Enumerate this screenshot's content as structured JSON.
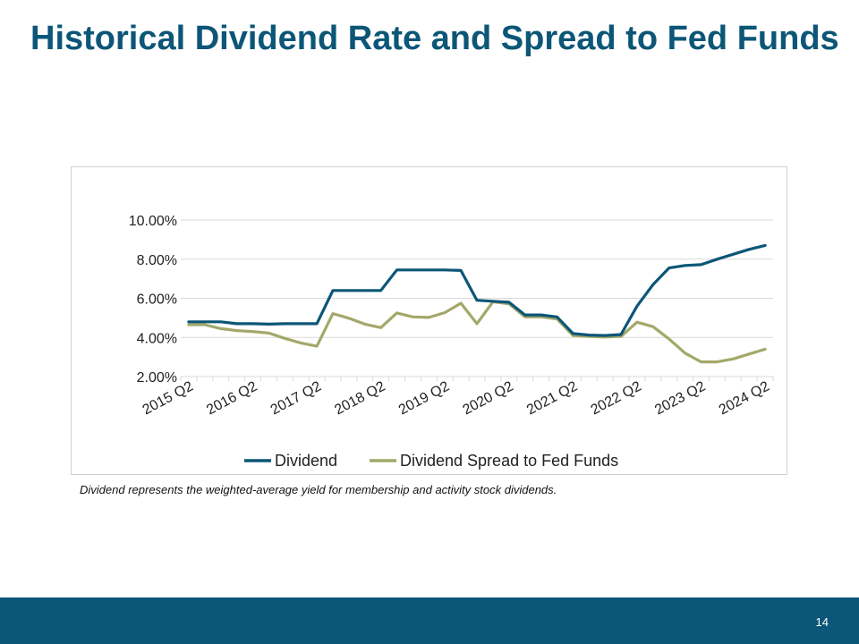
{
  "slide": {
    "title": "Historical Dividend Rate and Spread to Fed Funds",
    "footnote": "Dividend represents the weighted-average yield for membership and activity stock dividends.",
    "page_number": "14"
  },
  "colors": {
    "title": "#0c5677",
    "footer": "#0c5677",
    "dividend": "#0c5677",
    "spread": "#a3a86a",
    "grid": "#d9d9d9"
  },
  "chart_data": {
    "type": "line",
    "title": "",
    "xlabel": "",
    "ylabel": "",
    "ylim": [
      2,
      10
    ],
    "y_ticks": [
      "2.00%",
      "4.00%",
      "6.00%",
      "8.00%",
      "10.00%"
    ],
    "y_tick_values": [
      2,
      4,
      6,
      8,
      10
    ],
    "grid": true,
    "legend_position": "bottom",
    "x_labels": [
      "2015 Q2",
      "2016 Q2",
      "2017 Q2",
      "2018 Q2",
      "2019 Q2",
      "2020 Q2",
      "2021 Q2",
      "2022 Q2",
      "2023 Q2",
      "2024 Q2"
    ],
    "x": [
      "2015 Q2",
      "2015 Q3",
      "2015 Q4",
      "2016 Q1",
      "2016 Q2",
      "2016 Q3",
      "2016 Q4",
      "2017 Q1",
      "2017 Q2",
      "2017 Q3",
      "2017 Q4",
      "2018 Q1",
      "2018 Q2",
      "2018 Q3",
      "2018 Q4",
      "2019 Q1",
      "2019 Q2",
      "2019 Q3",
      "2019 Q4",
      "2020 Q1",
      "2020 Q2",
      "2020 Q3",
      "2020 Q4",
      "2021 Q1",
      "2021 Q2",
      "2021 Q3",
      "2021 Q4",
      "2022 Q1",
      "2022 Q2",
      "2022 Q3",
      "2022 Q4",
      "2023 Q1",
      "2023 Q2",
      "2023 Q3",
      "2023 Q4",
      "2024 Q1",
      "2024 Q2"
    ],
    "series": [
      {
        "name": "Dividend",
        "values": [
          4.8,
          4.8,
          4.8,
          4.7,
          4.7,
          4.68,
          4.7,
          4.7,
          4.7,
          6.4,
          6.4,
          6.4,
          6.4,
          7.45,
          7.45,
          7.45,
          7.45,
          7.42,
          5.9,
          5.85,
          5.8,
          5.15,
          5.15,
          5.05,
          4.2,
          4.12,
          4.1,
          4.15,
          5.6,
          6.7,
          7.55,
          7.68,
          7.72,
          8.0,
          8.25,
          8.5,
          8.7
        ]
      },
      {
        "name": "Dividend Spread to Fed Funds",
        "values": [
          4.65,
          4.65,
          4.45,
          4.35,
          4.3,
          4.22,
          3.95,
          3.72,
          3.55,
          5.22,
          4.98,
          4.68,
          4.5,
          5.25,
          5.05,
          5.02,
          5.27,
          5.75,
          4.7,
          5.82,
          5.72,
          5.05,
          5.05,
          4.95,
          4.1,
          4.05,
          4.02,
          4.05,
          4.78,
          4.55,
          3.92,
          3.2,
          2.75,
          2.75,
          2.9,
          3.15,
          3.4
        ]
      }
    ]
  }
}
